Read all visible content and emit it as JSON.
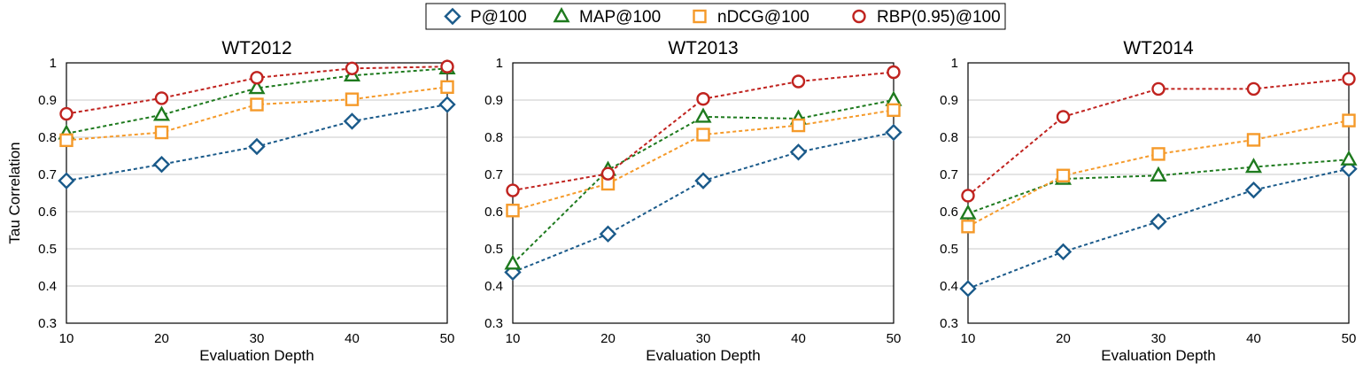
{
  "chart_data": [
    {
      "type": "line",
      "title": "WT2012",
      "xlabel": "Evaluation Depth",
      "ylabel": "Tau Correlation",
      "x": [
        10,
        20,
        30,
        40,
        50
      ],
      "ylim": [
        0.3,
        1
      ],
      "yticks": [
        "0.3",
        "0.4",
        "0.5",
        "0.6",
        "0.7",
        "0.8",
        "0.9",
        "1"
      ],
      "grid": true,
      "series": [
        {
          "name": "P@100",
          "values": [
            0.683,
            0.727,
            0.775,
            0.843,
            0.888
          ]
        },
        {
          "name": "MAP@100",
          "values": [
            0.81,
            0.86,
            0.932,
            0.966,
            0.985
          ]
        },
        {
          "name": "nDCG@100",
          "values": [
            0.792,
            0.813,
            0.888,
            0.902,
            0.935
          ]
        },
        {
          "name": "RBP(0.95)@100",
          "values": [
            0.863,
            0.905,
            0.96,
            0.985,
            0.99
          ]
        }
      ]
    },
    {
      "type": "line",
      "title": "WT2013",
      "xlabel": "Evaluation Depth",
      "ylabel": "",
      "x": [
        10,
        20,
        30,
        40,
        50
      ],
      "ylim": [
        0.3,
        1
      ],
      "yticks": [
        "0.3",
        "0.4",
        "0.5",
        "0.6",
        "0.7",
        "0.8",
        "0.9",
        "1"
      ],
      "grid": true,
      "series": [
        {
          "name": "P@100",
          "values": [
            0.437,
            0.54,
            0.683,
            0.76,
            0.813
          ]
        },
        {
          "name": "MAP@100",
          "values": [
            0.46,
            0.712,
            0.855,
            0.85,
            0.9
          ]
        },
        {
          "name": "nDCG@100",
          "values": [
            0.603,
            0.675,
            0.807,
            0.832,
            0.873
          ]
        },
        {
          "name": "RBP(0.95)@100",
          "values": [
            0.657,
            0.702,
            0.903,
            0.95,
            0.975
          ]
        }
      ]
    },
    {
      "type": "line",
      "title": "WT2014",
      "xlabel": "Evaluation Depth",
      "ylabel": "",
      "x": [
        10,
        20,
        30,
        40,
        50
      ],
      "ylim": [
        0.3,
        1
      ],
      "yticks": [
        "0.3",
        "0.4",
        "0.5",
        "0.6",
        "0.7",
        "0.8",
        "0.9",
        "1"
      ],
      "grid": true,
      "series": [
        {
          "name": "P@100",
          "values": [
            0.393,
            0.492,
            0.573,
            0.658,
            0.715
          ]
        },
        {
          "name": "MAP@100",
          "values": [
            0.595,
            0.688,
            0.697,
            0.72,
            0.74
          ]
        },
        {
          "name": "nDCG@100",
          "values": [
            0.56,
            0.697,
            0.755,
            0.793,
            0.845
          ]
        },
        {
          "name": "RBP(0.95)@100",
          "values": [
            0.643,
            0.855,
            0.93,
            0.93,
            0.957
          ]
        }
      ]
    }
  ],
  "legend": {
    "placement": "top-center",
    "items": [
      {
        "label": "P@100",
        "color": "#1a5a8a",
        "marker": "diamond-marker-icon"
      },
      {
        "label": "MAP@100",
        "color": "#1e7a1e",
        "marker": "triangle-marker-icon"
      },
      {
        "label": "nDCG@100",
        "color": "#f59a2a",
        "marker": "square-marker-icon"
      },
      {
        "label": "RBP(0.95)@100",
        "color": "#c0231f",
        "marker": "circle-marker-icon"
      }
    ]
  },
  "colors": {
    "grid": "#c8c8c8",
    "axis": "#000000"
  }
}
